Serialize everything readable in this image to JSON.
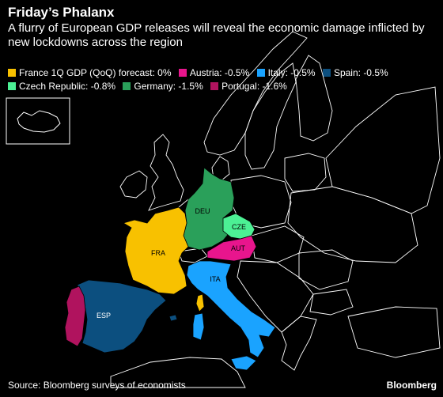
{
  "header": {
    "title": "Friday’s Phalanx",
    "subtitle": "A flurry of European GDP releases will reveal the economic damage inflicted by new lockdowns across the region"
  },
  "legend": [
    {
      "text": "France 1Q GDP (QoQ) forecast: 0%",
      "color": "#f8c100"
    },
    {
      "text": "Austria: -0.5%",
      "color": "#e8158d"
    },
    {
      "text": "Italy: -0.5%",
      "color": "#1aa3ff"
    },
    {
      "text": "Spain: -0.5%",
      "color": "#0c4f7f"
    },
    {
      "text": "Czech Republic: -0.8%",
      "color": "#4cf094"
    },
    {
      "text": "Germany: -1.5%",
      "color": "#2aa05a"
    },
    {
      "text": "Portugal: -1.6%",
      "color": "#b0135e"
    }
  ],
  "map": {
    "countries": [
      {
        "code": "FRA",
        "value": 0,
        "color": "#f8c100"
      },
      {
        "code": "AUT",
        "value": -0.5,
        "color": "#e8158d"
      },
      {
        "code": "ITA",
        "value": -0.5,
        "color": "#1aa3ff"
      },
      {
        "code": "ESP",
        "value": -0.5,
        "color": "#0c4f7f"
      },
      {
        "code": "CZE",
        "value": -0.8,
        "color": "#4cf094"
      },
      {
        "code": "DEU",
        "value": -1.5,
        "color": "#2aa05a"
      },
      {
        "code": "PRT",
        "value": -1.6,
        "color": "#b0135e"
      }
    ],
    "labels": {
      "FRA": "FRA",
      "DEU": "DEU",
      "CZE": "CZE",
      "AUT": "AUT",
      "ITA": "ITA",
      "ESP": "ESP"
    }
  },
  "footer": {
    "source": "Source: Bloomberg surveys of economists",
    "brand": "Bloomberg"
  }
}
